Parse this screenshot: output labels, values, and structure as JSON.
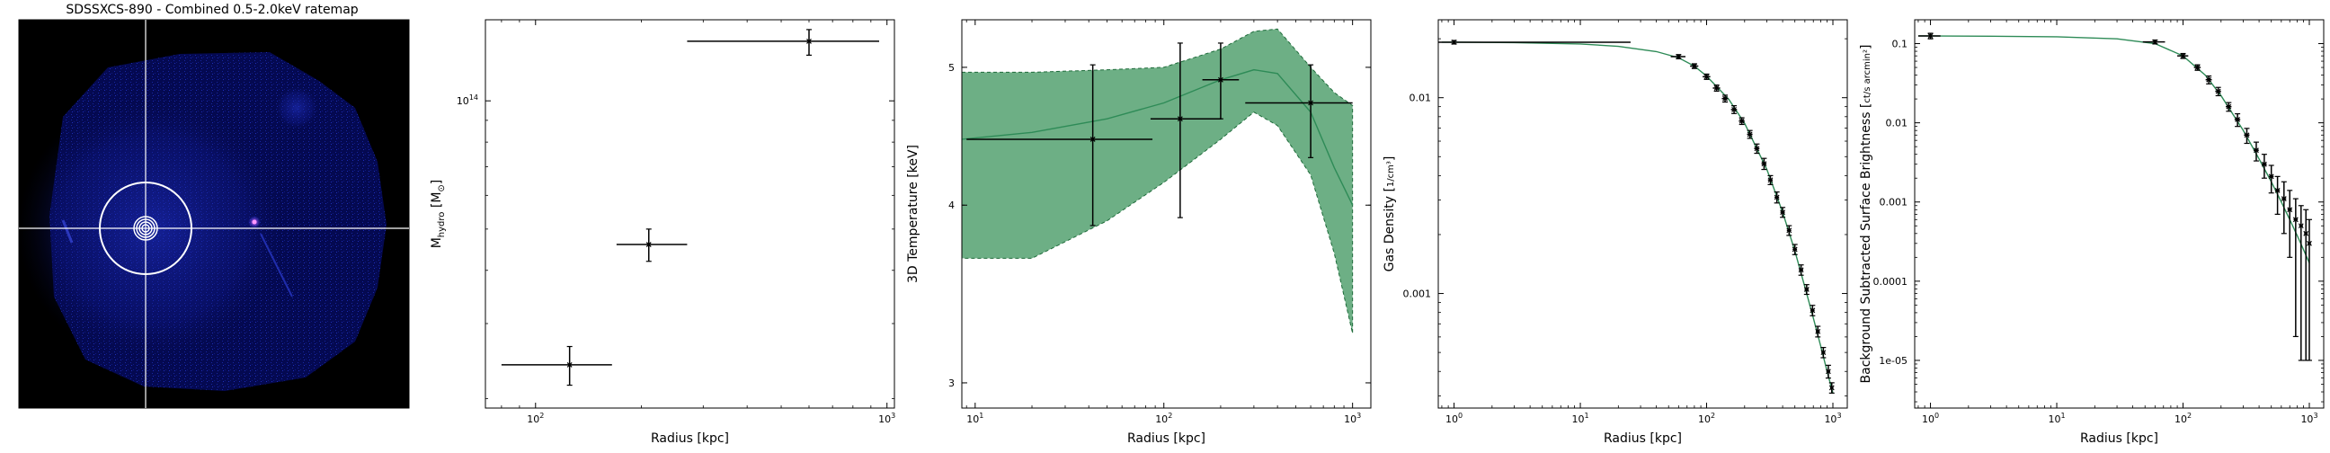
{
  "ratemap": {
    "title": "SDSSXCS-890 - Combined 0.5-2.0keV ratemap",
    "background": "#000000",
    "crosshair_color": "#ffffff",
    "ring_color": "#ffffff"
  },
  "chart_data": [
    {
      "type": "scatter",
      "ylabel_main": "M",
      "ylabel_sub": "hydro",
      "ylabel_unit": " [M",
      "ylabel_unit_sub": "⊙",
      "ylabel_close": "]",
      "xlabel": "Radius [kpc]",
      "xscale": "log",
      "yscale": "log",
      "xlim": [
        72,
        1050
      ],
      "ylim": [
        19000000000000,
        155000000000000
      ],
      "xticks": [
        {
          "v": 100,
          "base": "10",
          "exp": "2"
        },
        {
          "v": 1000,
          "base": "10",
          "exp": "3"
        }
      ],
      "yticks": [
        {
          "v": 100000000000000,
          "base": "10",
          "exp": "14"
        }
      ],
      "points": [
        {
          "x": 125,
          "xerr": [
            45,
            40
          ],
          "y": 24000000000000,
          "yerr": [
            2500000000000,
            2500000000000
          ]
        },
        {
          "x": 210,
          "xerr": [
            40,
            60
          ],
          "y": 46000000000000,
          "yerr": [
            4000000000000,
            4000000000000
          ]
        },
        {
          "x": 600,
          "xerr": [
            330,
            350
          ],
          "y": 138000000000000,
          "yerr": [
            10000000000000,
            9000000000000
          ]
        }
      ],
      "marker_color": "#000000"
    },
    {
      "type": "line",
      "ylabel": "3D Temperature [keV]",
      "xlabel": "Radius [kpc]",
      "xscale": "log",
      "yscale": "log",
      "xlim": [
        8.5,
        1250
      ],
      "ylim": [
        2.88,
        5.4
      ],
      "xticks": [
        {
          "v": 10,
          "base": "10",
          "exp": "1"
        },
        {
          "v": 100,
          "base": "10",
          "exp": "2"
        },
        {
          "v": 1000,
          "base": "10",
          "exp": "3"
        }
      ],
      "yticks": [
        {
          "v": 3,
          "label": "3"
        },
        {
          "v": 4,
          "label": "4"
        },
        {
          "v": 5,
          "label": "5"
        }
      ],
      "model_x": [
        8.5,
        20,
        50,
        100,
        200,
        300,
        400,
        600,
        800,
        1000
      ],
      "model_y": [
        4.45,
        4.5,
        4.6,
        4.72,
        4.9,
        4.98,
        4.95,
        4.65,
        4.25,
        4.0
      ],
      "band_lower": [
        3.67,
        3.67,
        3.9,
        4.15,
        4.45,
        4.65,
        4.55,
        4.2,
        3.7,
        3.25
      ],
      "band_upper": [
        4.96,
        4.96,
        4.98,
        5.0,
        5.15,
        5.3,
        5.32,
        5.0,
        4.8,
        4.7
      ],
      "points": [
        {
          "x": 42,
          "xerr": [
            33,
            45
          ],
          "y": 4.45,
          "yerr": [
            0.58,
            0.57
          ]
        },
        {
          "x": 122,
          "xerr": [
            37,
            80
          ],
          "y": 4.6,
          "yerr": [
            0.68,
            0.6
          ]
        },
        {
          "x": 200,
          "xerr": [
            40,
            50
          ],
          "y": 4.9,
          "yerr": [
            0.3,
            0.3
          ]
        },
        {
          "x": 600,
          "xerr": [
            330,
            400
          ],
          "y": 4.72,
          "yerr": [
            0.4,
            0.3
          ]
        }
      ],
      "band_color": "#5da678",
      "line_color": "#2e8b57",
      "marker_color": "#000000"
    },
    {
      "type": "line",
      "ylabel_main": "Gas Density",
      "ylabel_frac_num": "1",
      "ylabel_frac_den": "cm³",
      "xlabel": "Radius [kpc]",
      "xscale": "log",
      "yscale": "log",
      "xlim": [
        0.75,
        1300
      ],
      "ylim": [
        0.00026,
        0.025
      ],
      "xticks": [
        {
          "v": 1,
          "base": "10",
          "exp": "0"
        },
        {
          "v": 10,
          "base": "10",
          "exp": "1"
        },
        {
          "v": 100,
          "base": "10",
          "exp": "2"
        },
        {
          "v": 1000,
          "base": "10",
          "exp": "3"
        }
      ],
      "yticks": [
        {
          "v": 0.01,
          "label": "0.01"
        },
        {
          "v": 0.001,
          "label": "0.001"
        }
      ],
      "model_x": [
        0.8,
        1,
        3,
        10,
        20,
        40,
        60,
        80,
        100,
        150,
        200,
        300,
        400,
        500,
        600,
        700,
        800,
        900,
        1000
      ],
      "model_y": [
        0.0192,
        0.0192,
        0.0191,
        0.0188,
        0.0183,
        0.0172,
        0.016,
        0.0145,
        0.0129,
        0.0098,
        0.0074,
        0.0043,
        0.0026,
        0.00165,
        0.00108,
        0.00075,
        0.00054,
        0.0004,
        0.00031
      ],
      "points": [
        {
          "x": 1,
          "xerr": [
            0.4,
            24
          ],
          "y": 0.0192,
          "yerr": [
            0.0004,
            0.0004
          ]
        },
        {
          "x": 60,
          "xerr": [
            8,
            8
          ],
          "y": 0.0162,
          "yerr": [
            0.0004,
            0.0004
          ]
        },
        {
          "x": 80,
          "xerr": [
            6,
            6
          ],
          "y": 0.0145,
          "yerr": [
            0.0004,
            0.0004
          ]
        },
        {
          "x": 100,
          "xerr": [
            7,
            7
          ],
          "y": 0.0128,
          "yerr": [
            0.0004,
            0.0004
          ]
        },
        {
          "x": 120,
          "xerr": [
            8,
            8
          ],
          "y": 0.0112,
          "yerr": [
            0.0004,
            0.0004
          ]
        },
        {
          "x": 140,
          "xerr": [
            8,
            8
          ],
          "y": 0.0099,
          "yerr": [
            0.0004,
            0.0004
          ]
        },
        {
          "x": 165,
          "xerr": [
            9,
            9
          ],
          "y": 0.0087,
          "yerr": [
            0.0004,
            0.0004
          ]
        },
        {
          "x": 190,
          "xerr": [
            10,
            10
          ],
          "y": 0.0076,
          "yerr": [
            0.0003,
            0.0003
          ]
        },
        {
          "x": 220,
          "xerr": [
            11,
            11
          ],
          "y": 0.0065,
          "yerr": [
            0.0003,
            0.0003
          ]
        },
        {
          "x": 250,
          "xerr": [
            12,
            12
          ],
          "y": 0.0055,
          "yerr": [
            0.0003,
            0.0003
          ]
        },
        {
          "x": 285,
          "xerr": [
            13,
            13
          ],
          "y": 0.0046,
          "yerr": [
            0.0003,
            0.0003
          ]
        },
        {
          "x": 320,
          "xerr": [
            14,
            14
          ],
          "y": 0.0038,
          "yerr": [
            0.0002,
            0.0002
          ]
        },
        {
          "x": 360,
          "xerr": [
            15,
            15
          ],
          "y": 0.0031,
          "yerr": [
            0.0002,
            0.0002
          ]
        },
        {
          "x": 400,
          "xerr": [
            16,
            16
          ],
          "y": 0.0026,
          "yerr": [
            0.00015,
            0.00015
          ]
        },
        {
          "x": 450,
          "xerr": [
            18,
            18
          ],
          "y": 0.0021,
          "yerr": [
            0.00012,
            0.00012
          ]
        },
        {
          "x": 500,
          "xerr": [
            20,
            20
          ],
          "y": 0.00168,
          "yerr": [
            0.0001,
            0.0001
          ]
        },
        {
          "x": 560,
          "xerr": [
            22,
            22
          ],
          "y": 0.00132,
          "yerr": [
            8e-05,
            8e-05
          ]
        },
        {
          "x": 620,
          "xerr": [
            24,
            24
          ],
          "y": 0.00105,
          "yerr": [
            6e-05,
            6e-05
          ]
        },
        {
          "x": 690,
          "xerr": [
            26,
            26
          ],
          "y": 0.00082,
          "yerr": [
            5e-05,
            5e-05
          ]
        },
        {
          "x": 760,
          "xerr": [
            28,
            28
          ],
          "y": 0.00064,
          "yerr": [
            4e-05,
            4e-05
          ]
        },
        {
          "x": 840,
          "xerr": [
            30,
            30
          ],
          "y": 0.0005,
          "yerr": [
            3e-05,
            3e-05
          ]
        },
        {
          "x": 920,
          "xerr": [
            32,
            32
          ],
          "y": 0.0004,
          "yerr": [
            3e-05,
            3e-05
          ]
        },
        {
          "x": 980,
          "xerr": [
            30,
            30
          ],
          "y": 0.00033,
          "yerr": [
            2e-05,
            2e-05
          ]
        }
      ],
      "line_color": "#2e8b57",
      "marker_color": "#000000"
    },
    {
      "type": "line",
      "ylabel_main": "Background Subtracted Surface Brightness",
      "ylabel_frac_num": "ct",
      "ylabel_frac_den": "s arcmin²",
      "xlabel": "Radius [kpc]",
      "xscale": "log",
      "yscale": "log",
      "xlim": [
        0.75,
        1300
      ],
      "ylim": [
        2.5e-06,
        0.2
      ],
      "xticks": [
        {
          "v": 1,
          "base": "10",
          "exp": "0"
        },
        {
          "v": 10,
          "base": "10",
          "exp": "1"
        },
        {
          "v": 100,
          "base": "10",
          "exp": "2"
        },
        {
          "v": 1000,
          "base": "10",
          "exp": "3"
        }
      ],
      "yticks": [
        {
          "v": 0.1,
          "label": "0.1"
        },
        {
          "v": 0.01,
          "label": "0.01"
        },
        {
          "v": 0.001,
          "label": "0.001"
        },
        {
          "v": 0.0001,
          "label": "0.0001"
        },
        {
          "v": 1e-05,
          "label": "1e-05"
        }
      ],
      "model_x": [
        0.8,
        1,
        3,
        10,
        30,
        60,
        100,
        150,
        200,
        300,
        400,
        500,
        600,
        700,
        800,
        900,
        1000
      ],
      "model_y": [
        0.125,
        0.125,
        0.124,
        0.122,
        0.115,
        0.1,
        0.07,
        0.04,
        0.022,
        0.008,
        0.0035,
        0.0018,
        0.001,
        0.0006,
        0.00038,
        0.00025,
        0.00017
      ],
      "points": [
        {
          "x": 1,
          "xerr": [
            0.2,
            0.2
          ],
          "y": 0.125,
          "yerr": [
            0.01,
            0.01
          ]
        },
        {
          "x": 60,
          "xerr": [
            12,
            12
          ],
          "y": 0.105,
          "yerr": [
            0.006,
            0.006
          ]
        },
        {
          "x": 100,
          "xerr": [
            10,
            10
          ],
          "y": 0.07,
          "yerr": [
            0.005,
            0.005
          ]
        },
        {
          "x": 130,
          "xerr": [
            8,
            8
          ],
          "y": 0.05,
          "yerr": [
            0.004,
            0.004
          ]
        },
        {
          "x": 160,
          "xerr": [
            9,
            9
          ],
          "y": 0.035,
          "yerr": [
            0.004,
            0.004
          ]
        },
        {
          "x": 190,
          "xerr": [
            10,
            10
          ],
          "y": 0.025,
          "yerr": [
            0.003,
            0.003
          ]
        },
        {
          "x": 230,
          "xerr": [
            12,
            12
          ],
          "y": 0.016,
          "yerr": [
            0.002,
            0.002
          ]
        },
        {
          "x": 270,
          "xerr": [
            14,
            14
          ],
          "y": 0.011,
          "yerr": [
            0.002,
            0.002
          ]
        },
        {
          "x": 320,
          "xerr": [
            16,
            16
          ],
          "y": 0.007,
          "yerr": [
            0.0015,
            0.0015
          ]
        },
        {
          "x": 380,
          "xerr": [
            18,
            18
          ],
          "y": 0.0045,
          "yerr": [
            0.0012,
            0.0012
          ]
        },
        {
          "x": 440,
          "xerr": [
            20,
            20
          ],
          "y": 0.003,
          "yerr": [
            0.001,
            0.001
          ]
        },
        {
          "x": 500,
          "xerr": [
            22,
            22
          ],
          "y": 0.0021,
          "yerr": [
            0.0008,
            0.0008
          ]
        },
        {
          "x": 560,
          "xerr": [
            24,
            24
          ],
          "y": 0.0014,
          "yerr": [
            0.0007,
            0.0007
          ]
        },
        {
          "x": 630,
          "xerr": [
            26,
            26
          ],
          "y": 0.0011,
          "yerr": [
            0.0007,
            0.0007
          ]
        },
        {
          "x": 700,
          "xerr": [
            28,
            28
          ],
          "y": 0.0008,
          "yerr": [
            0.0006,
            0.0006
          ]
        },
        {
          "x": 780,
          "xerr": [
            30,
            30
          ],
          "y": 0.0006,
          "yerr": [
            0.00058,
            0.0005
          ]
        },
        {
          "x": 860,
          "xerr": [
            30,
            30
          ],
          "y": 0.0005,
          "yerr": [
            0.00049,
            0.0004
          ]
        },
        {
          "x": 940,
          "xerr": [
            30,
            30
          ],
          "y": 0.0004,
          "yerr": [
            0.00039,
            0.0004
          ]
        },
        {
          "x": 1000,
          "xerr": [
            30,
            30
          ],
          "y": 0.0003,
          "yerr": [
            0.00029,
            0.0003
          ]
        }
      ],
      "line_color": "#2e8b57",
      "marker_color": "#000000"
    }
  ]
}
